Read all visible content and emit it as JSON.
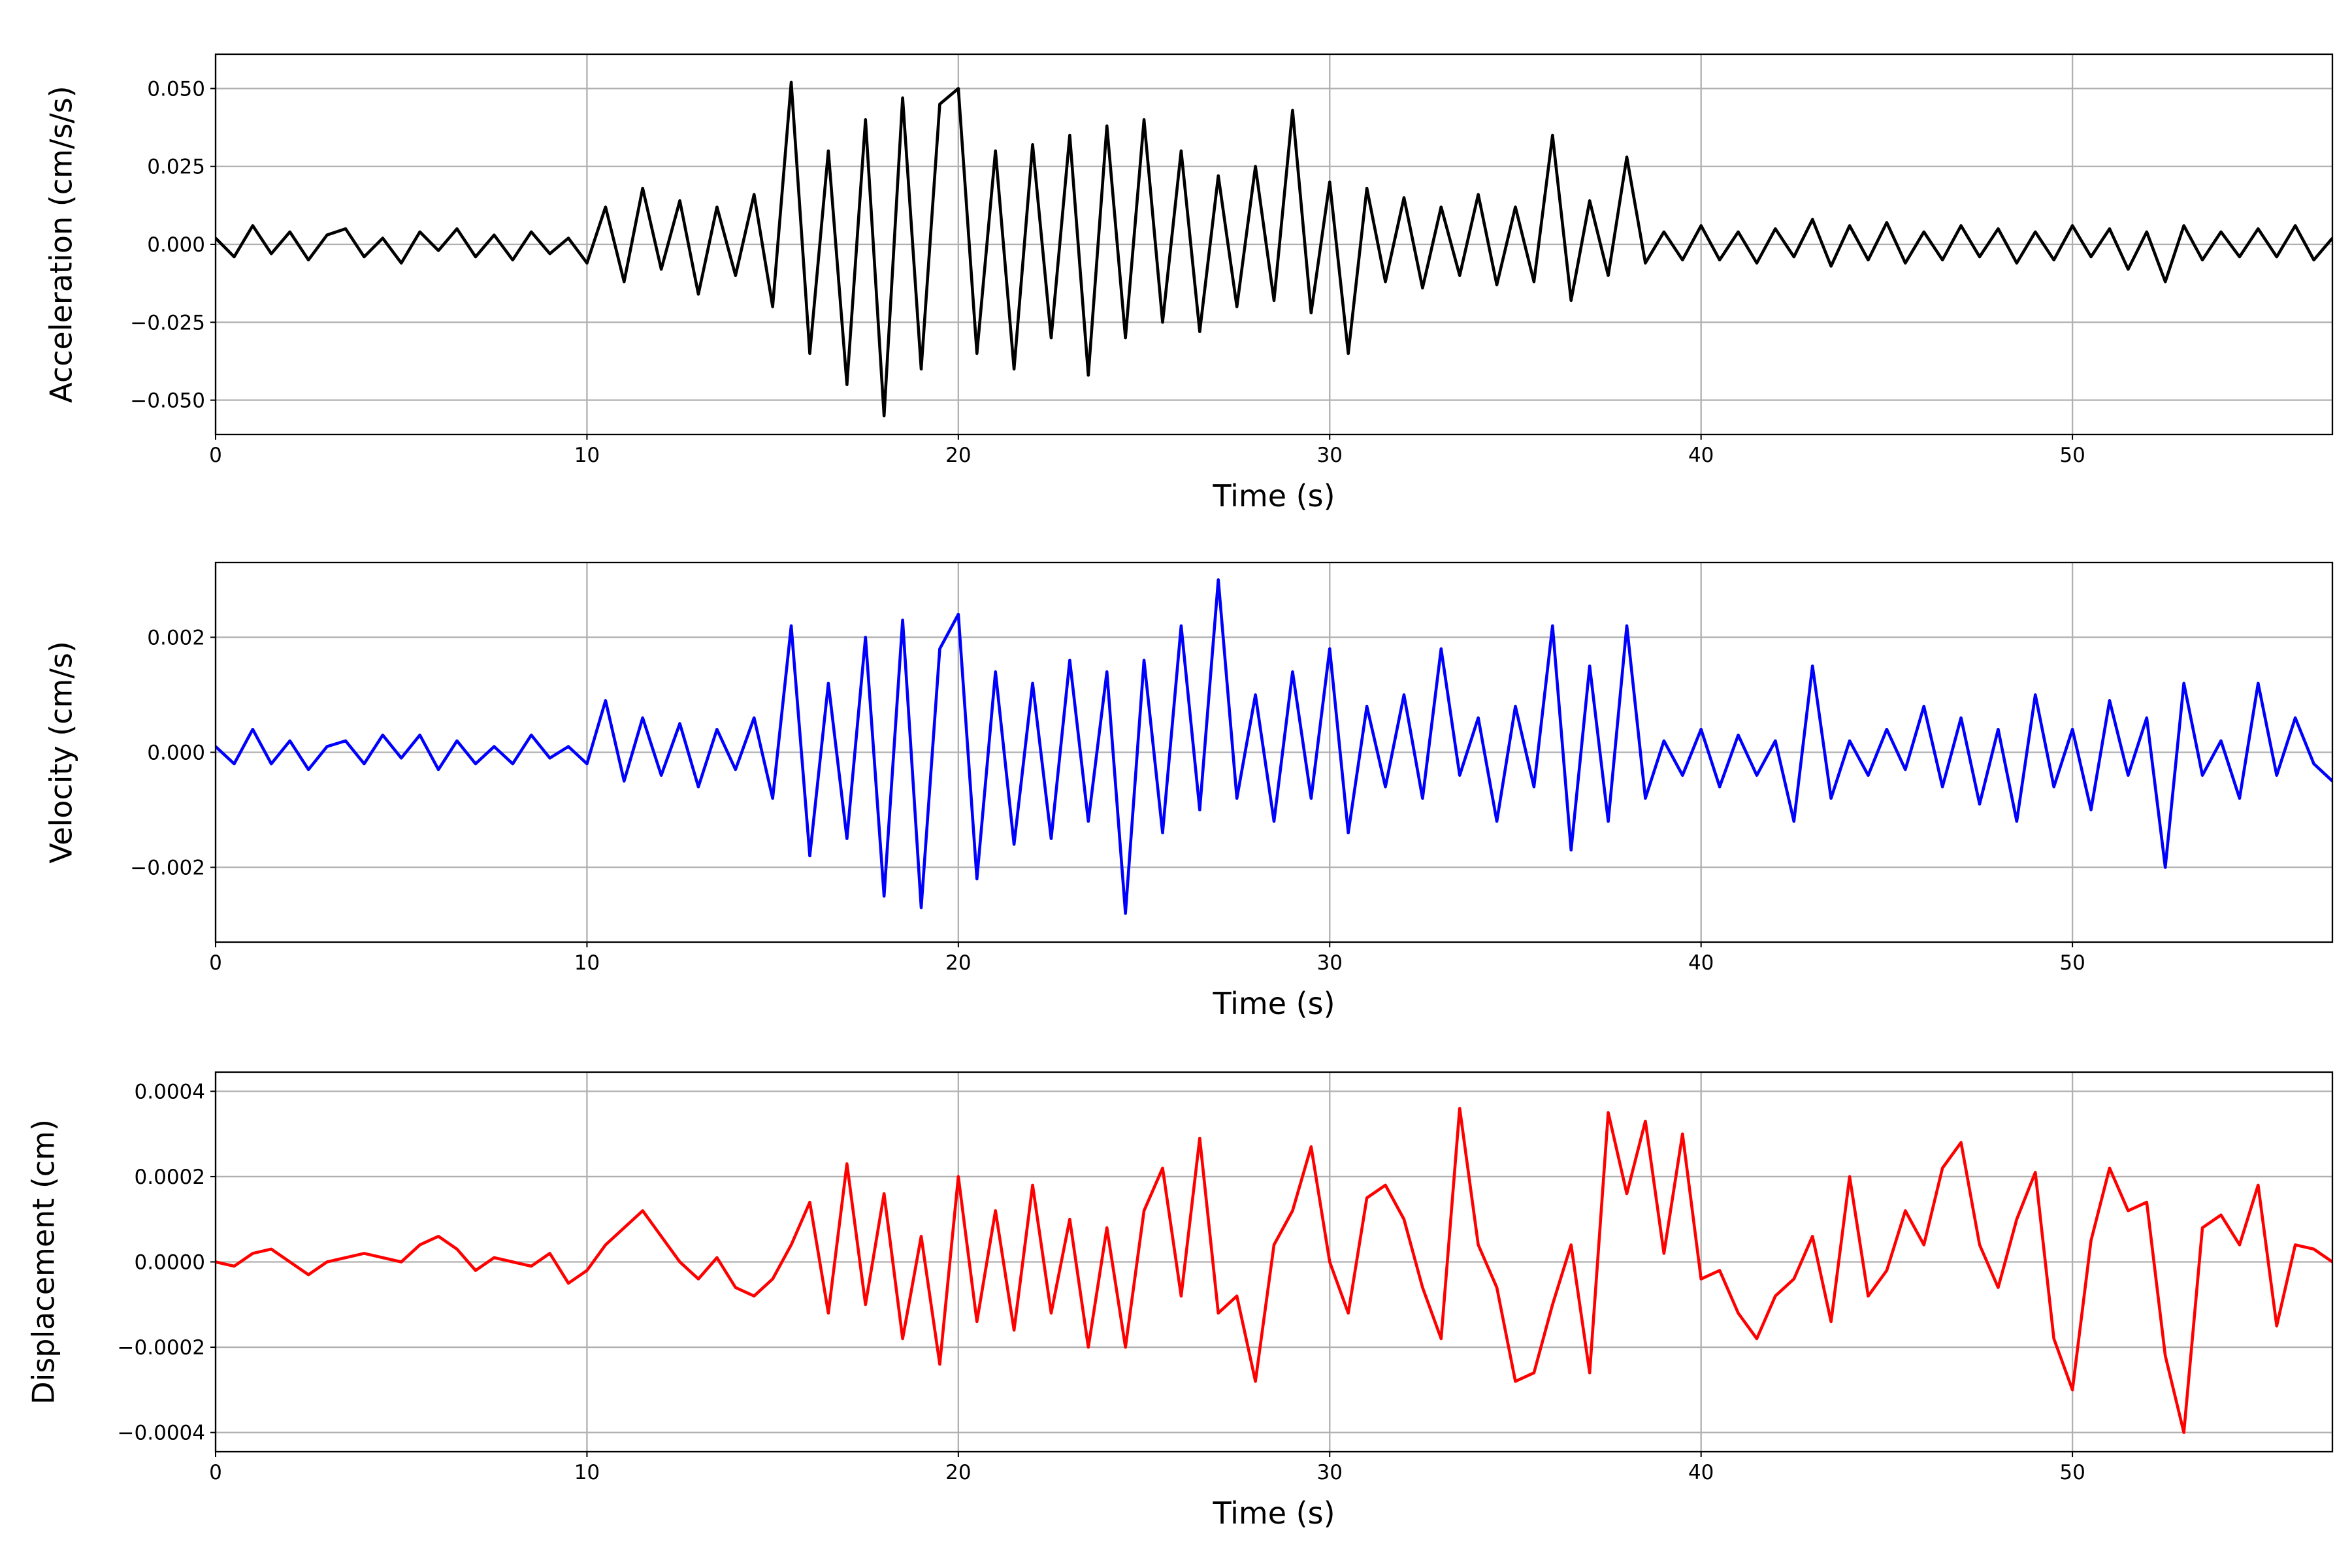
{
  "chart_data": [
    {
      "type": "line",
      "ylabel": "Acceleration (cm/s/s)",
      "xlabel": "Time (s)",
      "color": "#000000",
      "grid": true,
      "xlim": [
        0,
        57
      ],
      "xticks": [
        0,
        10,
        20,
        30,
        40,
        50
      ],
      "ylim": [
        -0.061,
        0.061
      ],
      "yticks": [
        {
          "value": -0.05,
          "label": "−0.050"
        },
        {
          "value": -0.025,
          "label": "−0.025"
        },
        {
          "value": 0,
          "label": "0.000"
        },
        {
          "value": 0.025,
          "label": "0.025"
        },
        {
          "value": 0.05,
          "label": "0.050"
        }
      ],
      "x": [
        0,
        0.5,
        1,
        1.5,
        2,
        2.5,
        3,
        3.5,
        4,
        4.5,
        5,
        5.5,
        6,
        6.5,
        7,
        7.5,
        8,
        8.5,
        9,
        9.5,
        10,
        10.5,
        11,
        11.5,
        12,
        12.5,
        13,
        13.5,
        14,
        14.5,
        15,
        15.5,
        16,
        16.5,
        17,
        17.5,
        18,
        18.5,
        19,
        19.5,
        20,
        20.5,
        21,
        21.5,
        22,
        22.5,
        23,
        23.5,
        24,
        24.5,
        25,
        25.5,
        26,
        26.5,
        27,
        27.5,
        28,
        28.5,
        29,
        29.5,
        30,
        30.5,
        31,
        31.5,
        32,
        32.5,
        33,
        33.5,
        34,
        34.5,
        35,
        35.5,
        36,
        36.5,
        37,
        37.5,
        38,
        38.5,
        39,
        39.5,
        40,
        40.5,
        41,
        41.5,
        42,
        42.5,
        43,
        43.5,
        44,
        44.5,
        45,
        45.5,
        46,
        46.5,
        47,
        47.5,
        48,
        48.5,
        49,
        49.5,
        50,
        50.5,
        51,
        51.5,
        52,
        52.5,
        53,
        53.5,
        54,
        54.5,
        55,
        55.5,
        56,
        56.5,
        57
      ],
      "values": [
        0.002,
        -0.004,
        0.006,
        -0.003,
        0.004,
        -0.005,
        0.003,
        0.005,
        -0.004,
        0.002,
        -0.006,
        0.004,
        -0.002,
        0.005,
        -0.004,
        0.003,
        -0.005,
        0.004,
        -0.003,
        0.002,
        -0.006,
        0.012,
        -0.012,
        0.018,
        -0.008,
        0.014,
        -0.016,
        0.012,
        -0.01,
        0.016,
        -0.02,
        0.052,
        -0.035,
        0.03,
        -0.045,
        0.04,
        -0.055,
        0.047,
        -0.04,
        0.045,
        0.05,
        -0.035,
        0.03,
        -0.04,
        0.032,
        -0.03,
        0.035,
        -0.042,
        0.038,
        -0.03,
        0.04,
        -0.025,
        0.03,
        -0.028,
        0.022,
        -0.02,
        0.025,
        -0.018,
        0.043,
        -0.022,
        0.02,
        -0.035,
        0.018,
        -0.012,
        0.015,
        -0.014,
        0.012,
        -0.01,
        0.016,
        -0.013,
        0.012,
        -0.012,
        0.035,
        -0.018,
        0.014,
        -0.01,
        0.028,
        -0.006,
        0.004,
        -0.005,
        0.006,
        -0.005,
        0.004,
        -0.006,
        0.005,
        -0.004,
        0.008,
        -0.007,
        0.006,
        -0.005,
        0.007,
        -0.006,
        0.004,
        -0.005,
        0.006,
        -0.004,
        0.005,
        -0.006,
        0.004,
        -0.005,
        0.006,
        -0.004,
        0.005,
        -0.008,
        0.004,
        -0.012,
        0.006,
        -0.005,
        0.004,
        -0.004,
        0.005,
        -0.004,
        0.006,
        -0.005,
        0.002
      ]
    },
    {
      "type": "line",
      "ylabel": "Velocity (cm/s)",
      "xlabel": "Time (s)",
      "color": "#0000ff",
      "grid": true,
      "xlim": [
        0,
        57
      ],
      "xticks": [
        0,
        10,
        20,
        30,
        40,
        50
      ],
      "ylim": [
        -0.0033,
        0.0033
      ],
      "yticks": [
        {
          "value": -0.002,
          "label": "−0.002"
        },
        {
          "value": 0,
          "label": "0.000"
        },
        0.002
      ],
      "x": [
        0,
        0.5,
        1,
        1.5,
        2,
        2.5,
        3,
        3.5,
        4,
        4.5,
        5,
        5.5,
        6,
        6.5,
        7,
        7.5,
        8,
        8.5,
        9,
        9.5,
        10,
        10.5,
        11,
        11.5,
        12,
        12.5,
        13,
        13.5,
        14,
        14.5,
        15,
        15.5,
        16,
        16.5,
        17,
        17.5,
        18,
        18.5,
        19,
        19.5,
        20,
        20.5,
        21,
        21.5,
        22,
        22.5,
        23,
        23.5,
        24,
        24.5,
        25,
        25.5,
        26,
        26.5,
        27,
        27.5,
        28,
        28.5,
        29,
        29.5,
        30,
        30.5,
        31,
        31.5,
        32,
        32.5,
        33,
        33.5,
        34,
        34.5,
        35,
        35.5,
        36,
        36.5,
        37,
        37.5,
        38,
        38.5,
        39,
        39.5,
        40,
        40.5,
        41,
        41.5,
        42,
        42.5,
        43,
        43.5,
        44,
        44.5,
        45,
        45.5,
        46,
        46.5,
        47,
        47.5,
        48,
        48.5,
        49,
        49.5,
        50,
        50.5,
        51,
        51.5,
        52,
        52.5,
        53,
        53.5,
        54,
        54.5,
        55,
        55.5,
        56,
        56.5,
        57
      ],
      "values": [
        0.0001,
        -0.0002,
        0.0004,
        -0.0002,
        0.0002,
        -0.0003,
        0.0001,
        0.0002,
        -0.0002,
        0.0003,
        -0.0001,
        0.0003,
        -0.0003,
        0.0002,
        -0.0002,
        0.0001,
        -0.0002,
        0.0003,
        -0.0001,
        0.0001,
        -0.0002,
        0.0009,
        -0.0005,
        0.0006,
        -0.0004,
        0.0005,
        -0.0006,
        0.0004,
        -0.0003,
        0.0006,
        -0.0008,
        0.0022,
        -0.0018,
        0.0012,
        -0.0015,
        0.002,
        -0.0025,
        0.0023,
        -0.0027,
        0.0018,
        0.0024,
        -0.0022,
        0.0014,
        -0.0016,
        0.0012,
        -0.0015,
        0.0016,
        -0.0012,
        0.0014,
        -0.0028,
        0.0016,
        -0.0014,
        0.0022,
        -0.001,
        0.003,
        -0.0008,
        0.001,
        -0.0012,
        0.0014,
        -0.0008,
        0.0018,
        -0.0014,
        0.0008,
        -0.0006,
        0.001,
        -0.0008,
        0.0018,
        -0.0004,
        0.0006,
        -0.0012,
        0.0008,
        -0.0006,
        0.0022,
        -0.0017,
        0.0015,
        -0.0012,
        0.0022,
        -0.0008,
        0.0002,
        -0.0004,
        0.0004,
        -0.0006,
        0.0003,
        -0.0004,
        0.0002,
        -0.0012,
        0.0015,
        -0.0008,
        0.0002,
        -0.0004,
        0.0004,
        -0.0003,
        0.0008,
        -0.0006,
        0.0006,
        -0.0009,
        0.0004,
        -0.0012,
        0.001,
        -0.0006,
        0.0004,
        -0.001,
        0.0009,
        -0.0004,
        0.0006,
        -0.002,
        0.0012,
        -0.0004,
        0.0002,
        -0.0008,
        0.0012,
        -0.0004,
        0.0006,
        -0.0002,
        -0.0005
      ]
    },
    {
      "type": "line",
      "ylabel": "Displacement (cm)",
      "xlabel": "Time (s)",
      "color": "#ff0000",
      "grid": true,
      "xlim": [
        0,
        57
      ],
      "xticks": [
        0,
        10,
        20,
        30,
        40,
        50
      ],
      "ylim": [
        -0.000445,
        0.000445
      ],
      "yticks": [
        {
          "value": -0.0004,
          "label": "−0.0004"
        },
        {
          "value": -0.0002,
          "label": "−0.0002"
        },
        {
          "value": 0,
          "label": "0.0000"
        },
        0.0002,
        0.0004
      ],
      "x": [
        0,
        0.5,
        1,
        1.5,
        2,
        2.5,
        3,
        3.5,
        4,
        4.5,
        5,
        5.5,
        6,
        6.5,
        7,
        7.5,
        8,
        8.5,
        9,
        9.5,
        10,
        10.5,
        11,
        11.5,
        12,
        12.5,
        13,
        13.5,
        14,
        14.5,
        15,
        15.5,
        16,
        16.5,
        17,
        17.5,
        18,
        18.5,
        19,
        19.5,
        20,
        20.5,
        21,
        21.5,
        22,
        22.5,
        23,
        23.5,
        24,
        24.5,
        25,
        25.5,
        26,
        26.5,
        27,
        27.5,
        28,
        28.5,
        29,
        29.5,
        30,
        30.5,
        31,
        31.5,
        32,
        32.5,
        33,
        33.5,
        34,
        34.5,
        35,
        35.5,
        36,
        36.5,
        37,
        37.5,
        38,
        38.5,
        39,
        39.5,
        40,
        40.5,
        41,
        41.5,
        42,
        42.5,
        43,
        43.5,
        44,
        44.5,
        45,
        45.5,
        46,
        46.5,
        47,
        47.5,
        48,
        48.5,
        49,
        49.5,
        50,
        50.5,
        51,
        51.5,
        52,
        52.5,
        53,
        53.5,
        54,
        54.5,
        55,
        55.5,
        56,
        56.5,
        57
      ],
      "values": [
        0,
        -1e-05,
        2e-05,
        3e-05,
        0,
        -3e-05,
        0,
        1e-05,
        2e-05,
        1e-05,
        0,
        4e-05,
        6e-05,
        3e-05,
        -2e-05,
        1e-05,
        0,
        -1e-05,
        2e-05,
        -5e-05,
        -2e-05,
        4e-05,
        8e-05,
        0.00012,
        6e-05,
        0,
        -4e-05,
        1e-05,
        -6e-05,
        -8e-05,
        -4e-05,
        4e-05,
        0.00014,
        -0.00012,
        0.00023,
        -0.0001,
        0.00016,
        -0.00018,
        6e-05,
        -0.00024,
        0.0002,
        -0.00014,
        0.00012,
        -0.00016,
        0.00018,
        -0.00012,
        0.0001,
        -0.0002,
        8e-05,
        -0.0002,
        0.00012,
        0.00022,
        -8e-05,
        0.00029,
        -0.00012,
        -8e-05,
        -0.00028,
        4e-05,
        0.00012,
        0.00027,
        0,
        -0.00012,
        0.00015,
        0.00018,
        0.0001,
        -6e-05,
        -0.00018,
        0.00036,
        4e-05,
        -6e-05,
        -0.00028,
        -0.00026,
        -0.0001,
        4e-05,
        -0.00026,
        0.00035,
        0.00016,
        0.00033,
        2e-05,
        0.0003,
        -4e-05,
        -2e-05,
        -0.00012,
        -0.00018,
        -8e-05,
        -4e-05,
        6e-05,
        -0.00014,
        0.0002,
        -8e-05,
        -2e-05,
        0.00012,
        4e-05,
        0.00022,
        0.00028,
        4e-05,
        -6e-05,
        0.0001,
        0.00021,
        -0.00018,
        -0.0003,
        5e-05,
        0.00022,
        0.00012,
        0.00014,
        -0.00022,
        -0.0004,
        8e-05,
        0.00011,
        4e-05,
        0.00018,
        -0.00015,
        4e-05,
        3e-05,
        0
      ]
    }
  ]
}
